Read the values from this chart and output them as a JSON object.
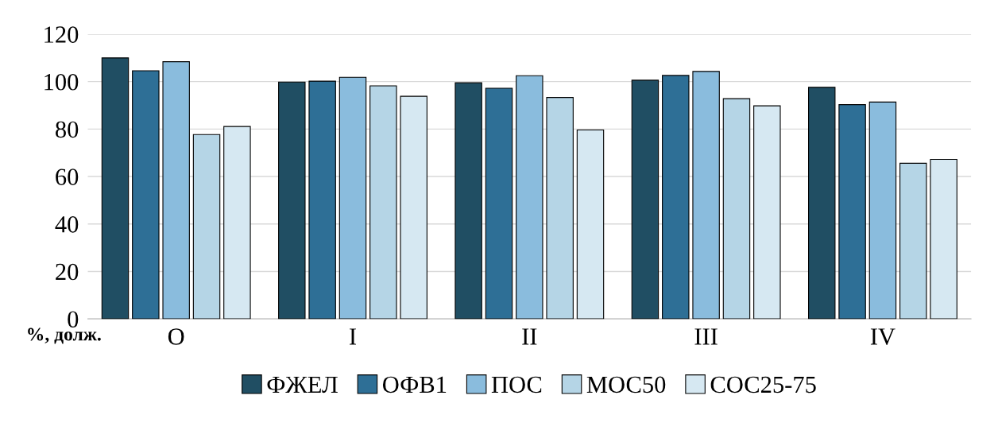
{
  "chart_data": {
    "type": "bar",
    "ylabel": "%, долж.",
    "categories": [
      "O",
      "I",
      "II",
      "III",
      "IV"
    ],
    "series": [
      {
        "name": "ФЖЕЛ",
        "color": "#204e63",
        "values": [
          110,
          99.8,
          99.5,
          100.6,
          97.6
        ]
      },
      {
        "name": "ОФВ1",
        "color": "#2e6f96",
        "values": [
          104.6,
          100.2,
          97.2,
          102.6,
          90.3
        ]
      },
      {
        "name": "ПОС",
        "color": "#8abcdd",
        "values": [
          108.4,
          101.8,
          102.5,
          104.3,
          91.4
        ]
      },
      {
        "name": "МОС50",
        "color": "#b5d5e6",
        "values": [
          77.7,
          98.2,
          93.3,
          92.8,
          65.6
        ]
      },
      {
        "name": "СОС25-75",
        "color": "#d6e8f2",
        "values": [
          81.1,
          93.8,
          79.6,
          89.8,
          67.2
        ]
      }
    ],
    "ylim": [
      0,
      120
    ],
    "yticks": [
      0,
      20,
      40,
      60,
      80,
      100,
      120
    ],
    "grid": "y",
    "legend": "bottom"
  }
}
